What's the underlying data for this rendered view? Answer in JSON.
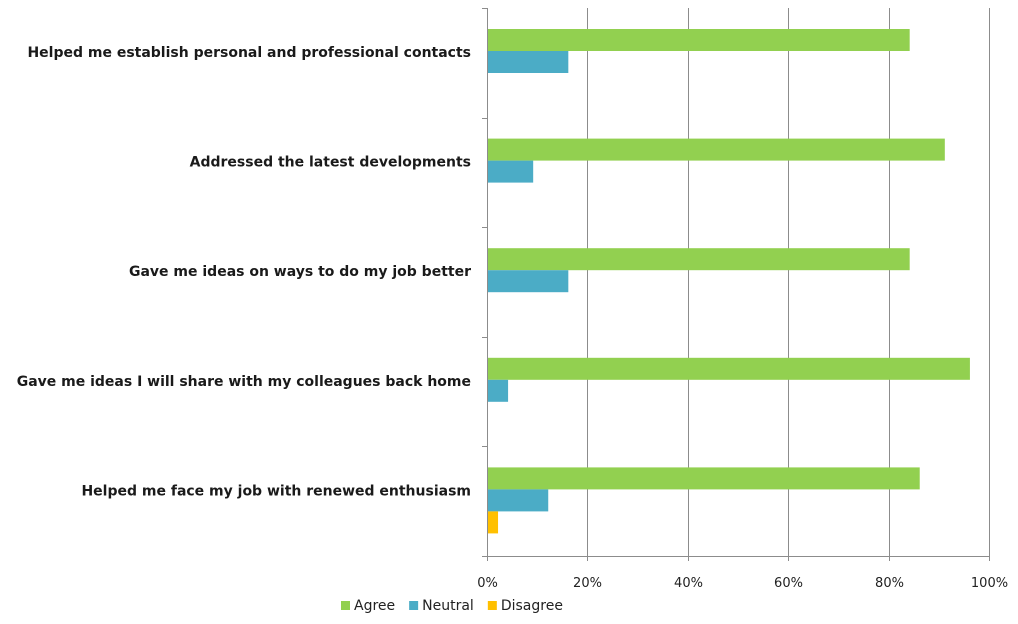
{
  "chart_data": {
    "type": "bar",
    "orientation": "horizontal",
    "categories": [
      "Helped me establish personal and professional contacts",
      "Addressed the latest developments",
      "Gave me ideas on ways to do my job better",
      "Gave me ideas I will share with my colleagues back home",
      "Helped me face my job with renewed enthusiasm"
    ],
    "series": [
      {
        "name": "Agree",
        "color": "#92d050",
        "values": [
          84,
          91,
          84,
          96,
          86
        ]
      },
      {
        "name": "Neutral",
        "color": "#4bacc6",
        "values": [
          16,
          9,
          16,
          4,
          12
        ]
      },
      {
        "name": "Disagree",
        "color": "#ffc000",
        "values": [
          0,
          0,
          0,
          0,
          2
        ]
      }
    ],
    "x_ticks": [
      "0%",
      "20%",
      "40%",
      "60%",
      "80%",
      "100%"
    ],
    "xlim": [
      0,
      100
    ],
    "grid": true,
    "legend_position": "bottom"
  }
}
